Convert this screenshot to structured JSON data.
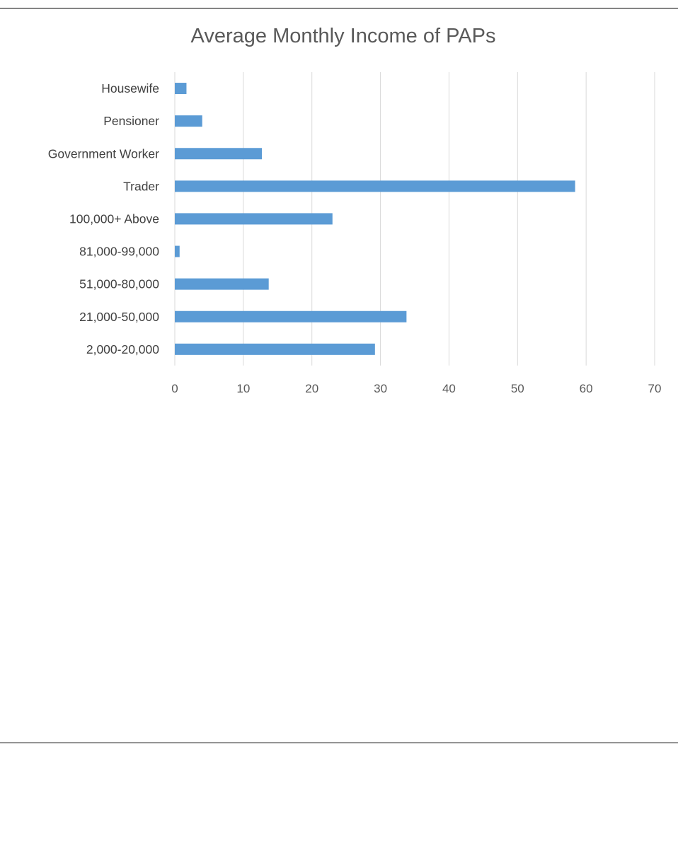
{
  "chart_data": {
    "type": "bar",
    "orientation": "horizontal",
    "title": "Average Monthly Income of PAPs",
    "xlabel": "",
    "ylabel": "",
    "categories": [
      "Housewife",
      "Pensioner",
      "Government Worker",
      "Trader",
      "100,000+ Above",
      "81,000-99,000",
      "51,000-80,000",
      "21,000-50,000",
      "2,000-20,000"
    ],
    "values": [
      1.7,
      4.0,
      12.7,
      58.4,
      23.0,
      0.7,
      13.7,
      33.8,
      29.2
    ],
    "xlim": [
      0,
      70
    ],
    "xticks": [
      "0",
      "10",
      "20",
      "30",
      "40",
      "50",
      "60",
      "70"
    ],
    "grid": "vertical",
    "legend": "none",
    "bar_color": "#5b9bd5",
    "grid_color": "#d9d9d9"
  }
}
